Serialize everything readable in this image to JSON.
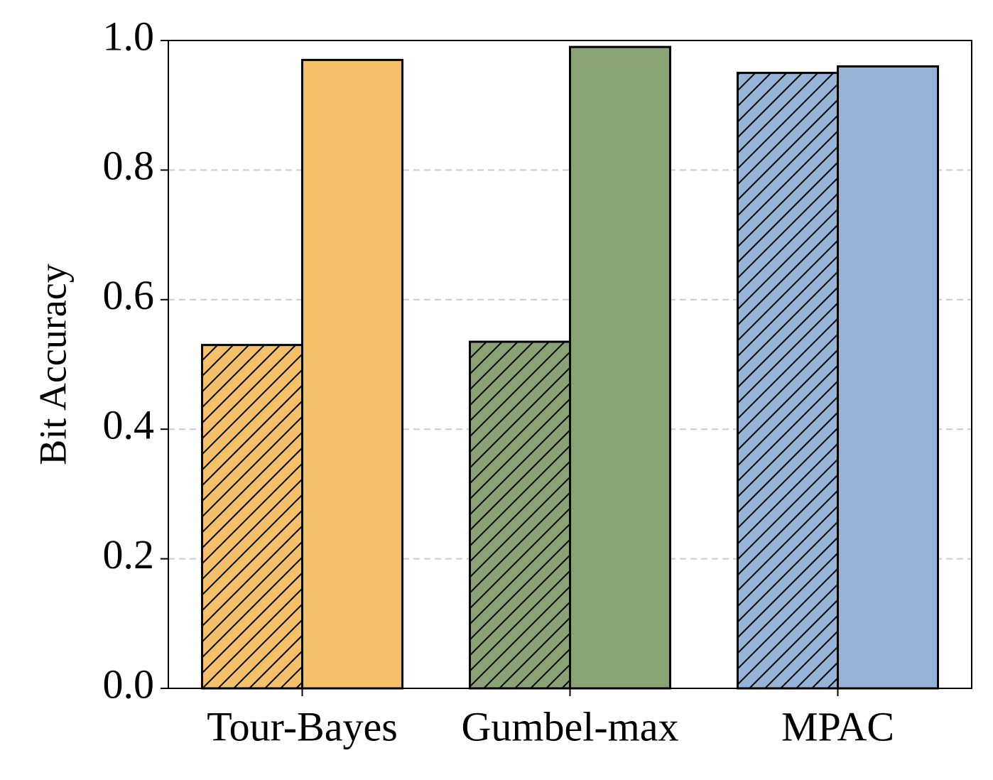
{
  "chart_data": {
    "type": "bar",
    "y_label": "Bit Accuracy",
    "categories": [
      "Tour-Bayes",
      "Gumbel-max",
      "MPAC"
    ],
    "colors": [
      "#f5c06a",
      "#8aa374",
      "#94b3d7"
    ],
    "series": [
      {
        "hatch": true,
        "values": [
          0.53,
          0.535,
          0.95
        ]
      },
      {
        "hatch": false,
        "values": [
          0.97,
          0.99,
          0.96
        ]
      }
    ],
    "ylim": [
      0,
      1
    ],
    "yticks": [
      {
        "value": 0,
        "label": "0.0"
      },
      0.2,
      0.4,
      0.6,
      0.8,
      {
        "value": 1,
        "label": "1.0"
      }
    ],
    "grid": true
  }
}
